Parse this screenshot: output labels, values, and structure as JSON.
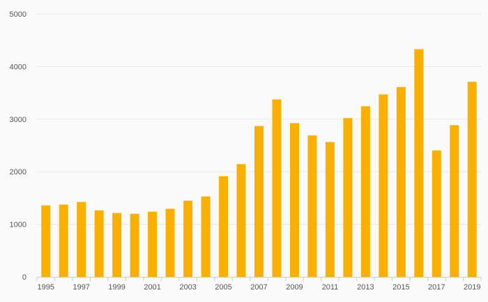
{
  "chart_data": {
    "type": "bar",
    "title": "",
    "xlabel": "",
    "ylabel": "",
    "ylim": [
      0,
      5000
    ],
    "yticks": [
      0,
      1000,
      2000,
      3000,
      4000,
      5000
    ],
    "ytick_labels": [
      "0",
      "1000",
      "2000",
      "3000",
      "4000",
      "5000"
    ],
    "categories": [
      "1995",
      "1996",
      "1997",
      "1998",
      "1999",
      "2000",
      "2001",
      "2002",
      "2003",
      "2004",
      "2005",
      "2006",
      "2007",
      "2008",
      "2009",
      "2010",
      "2011",
      "2012",
      "2013",
      "2014",
      "2015",
      "2016",
      "2017",
      "2018",
      "2019"
    ],
    "xtick_labels": [
      "1995",
      "1997",
      "1999",
      "2001",
      "2003",
      "2005",
      "2007",
      "2009",
      "2011",
      "2013",
      "2015",
      "2017",
      "2019"
    ],
    "values": [
      1360,
      1375,
      1425,
      1265,
      1215,
      1200,
      1240,
      1295,
      1450,
      1530,
      1915,
      2145,
      2870,
      3375,
      2925,
      2690,
      2565,
      3020,
      3245,
      3470,
      3610,
      4330,
      2405,
      2885,
      3710
    ],
    "bar_color": "#fbb000",
    "grid": true,
    "grid_color": "#e6e6e6",
    "axis_color": "#cccccc"
  }
}
